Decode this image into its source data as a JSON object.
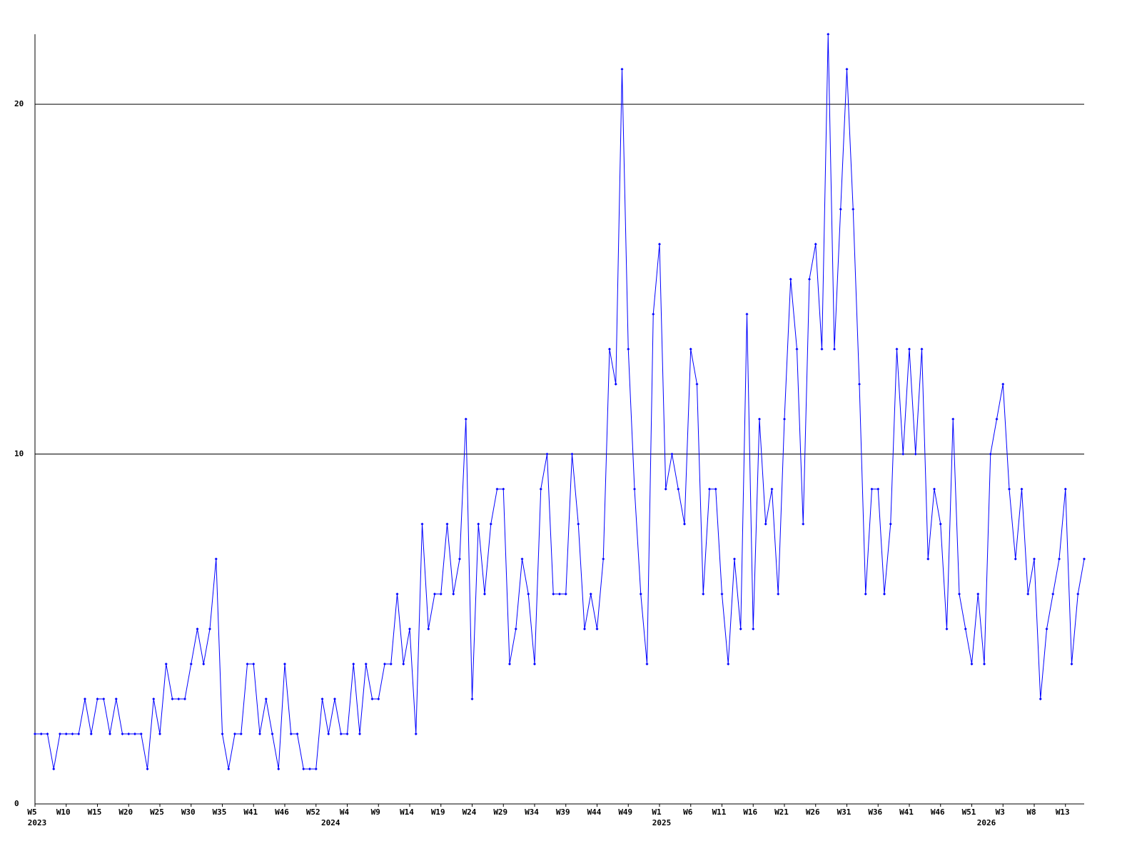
{
  "chart_data": {
    "type": "line",
    "categories": [
      "W5",
      null,
      null,
      null,
      null,
      "W10",
      null,
      null,
      null,
      null,
      "W15",
      null,
      null,
      null,
      null,
      "W20",
      null,
      null,
      null,
      null,
      "W25",
      null,
      null,
      null,
      null,
      "W30",
      null,
      null,
      null,
      null,
      "W35",
      null,
      null,
      null,
      null,
      "W41",
      null,
      null,
      null,
      null,
      "W46",
      null,
      null,
      null,
      null,
      "W52",
      null,
      null,
      null,
      null,
      "W4",
      null,
      null,
      null,
      null,
      "W9",
      null,
      null,
      null,
      null,
      "W14",
      null,
      null,
      null,
      null,
      "W19",
      null,
      null,
      null,
      null,
      "W24",
      null,
      null,
      null,
      null,
      "W29",
      null,
      null,
      null,
      null,
      "W34",
      null,
      null,
      null,
      null,
      "W39",
      null,
      null,
      null,
      null,
      "W44",
      null,
      null,
      null,
      null,
      "W49",
      null,
      null,
      null,
      null,
      "W1",
      null,
      null,
      null,
      null,
      "W6",
      null,
      null,
      null,
      null,
      "W11",
      null,
      null,
      null,
      null,
      "W16",
      null,
      null,
      null,
      null,
      "W21",
      null,
      null,
      null,
      null,
      "W26",
      null,
      null,
      null,
      null,
      "W31",
      null,
      null,
      null,
      null,
      "W36",
      null,
      null,
      null,
      null,
      "W41",
      null,
      null,
      null,
      null,
      "W46",
      null,
      null,
      null,
      null,
      "W51",
      null,
      null,
      null,
      null,
      "W3",
      null,
      null,
      null,
      null,
      "W8",
      null,
      null,
      null,
      null,
      "W13",
      null,
      null,
      null
    ],
    "year_labels": [
      {
        "label": "2023",
        "index": 0
      },
      {
        "label": "2024",
        "index": 47
      },
      {
        "label": "2025",
        "index": 100
      },
      {
        "label": "2026",
        "index": 152
      }
    ],
    "series": [
      {
        "color": "#0000ff",
        "values": [
          2,
          2,
          2,
          1,
          2,
          2,
          2,
          2,
          3,
          2,
          3,
          3,
          2,
          3,
          2,
          2,
          2,
          2,
          1,
          3,
          2,
          4,
          3,
          3,
          3,
          4,
          5,
          4,
          5,
          7,
          2,
          1,
          2,
          2,
          4,
          4,
          2,
          3,
          2,
          1,
          4,
          2,
          2,
          1,
          1,
          1,
          3,
          2,
          3,
          2,
          2,
          4,
          2,
          4,
          3,
          3,
          4,
          4,
          6,
          4,
          5,
          2,
          8,
          5,
          6,
          6,
          8,
          6,
          7,
          11,
          3,
          8,
          6,
          8,
          9,
          9,
          4,
          5,
          7,
          6,
          4,
          9,
          10,
          6,
          6,
          6,
          10,
          8,
          5,
          6,
          5,
          7,
          13,
          12,
          21,
          13,
          9,
          6,
          4,
          14,
          16,
          9,
          10,
          9,
          8,
          13,
          12,
          6,
          9,
          9,
          6,
          4,
          7,
          5,
          14,
          5,
          11,
          8,
          9,
          6,
          11,
          15,
          13,
          8,
          15,
          16,
          13,
          22,
          13,
          17,
          21,
          17,
          12,
          6,
          9,
          9,
          6,
          8,
          13,
          10,
          13,
          10,
          13,
          7,
          9,
          8,
          5,
          11,
          6,
          5,
          4,
          6,
          4,
          10,
          11,
          12,
          9,
          7,
          9,
          6,
          7,
          3,
          5,
          6,
          7,
          9,
          4,
          6,
          7
        ]
      }
    ],
    "ylim": [
      0,
      22
    ],
    "yticks": [
      0,
      10,
      20
    ],
    "grid": true
  }
}
